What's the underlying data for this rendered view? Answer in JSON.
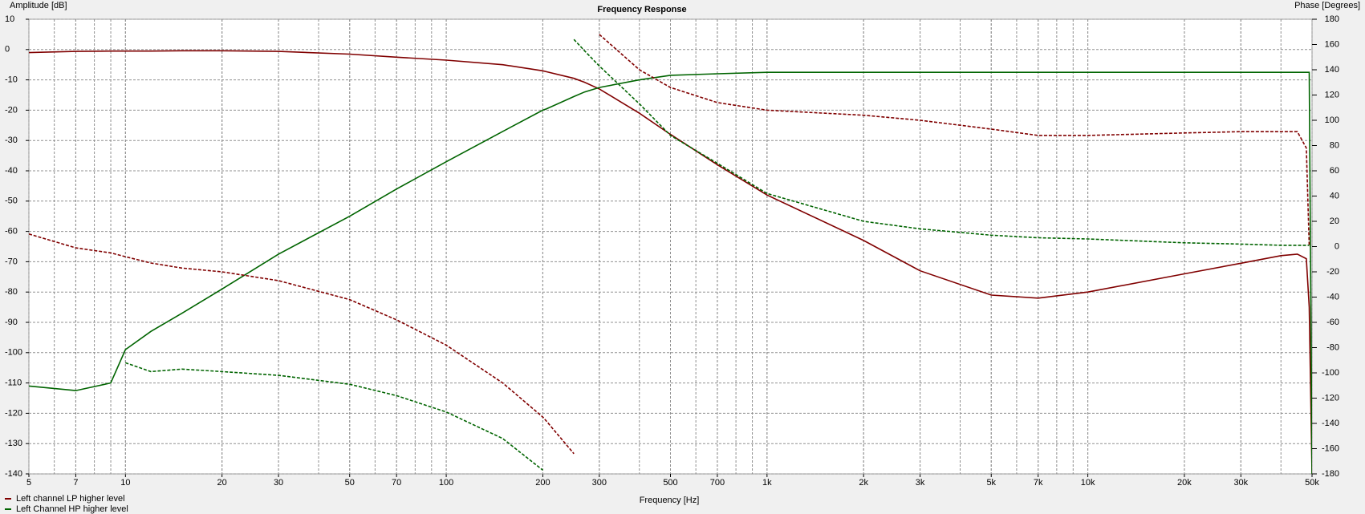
{
  "chart_data": {
    "type": "line",
    "title": "Frequency Response",
    "x_label": "Frequency [Hz]",
    "y_label": "Amplitude [dB]",
    "y2_label": "Phase [Degrees]",
    "x_scale": "log",
    "grid": true,
    "legend": "bottom-left",
    "xlim": [
      5,
      50000
    ],
    "xticks": [
      5,
      7,
      10,
      20,
      30,
      50,
      70,
      100,
      200,
      300,
      500,
      700,
      {
        "value": 1000,
        "label": "1k"
      },
      {
        "value": 2000,
        "label": "2k"
      },
      {
        "value": 3000,
        "label": "3k"
      },
      {
        "value": 5000,
        "label": "5k"
      },
      {
        "value": 7000,
        "label": "7k"
      },
      {
        "value": 10000,
        "label": "10k"
      },
      {
        "value": 20000,
        "label": "20k"
      },
      {
        "value": 30000,
        "label": "30k"
      },
      {
        "value": 50000,
        "label": "50k"
      }
    ],
    "ylim": [
      -140,
      10
    ],
    "yticks": [
      -140,
      -130,
      -120,
      -110,
      -100,
      -90,
      -80,
      -70,
      -60,
      -50,
      -40,
      -30,
      -20,
      -10,
      0,
      10
    ],
    "y2lim": [
      -180,
      180
    ],
    "y2ticks": [
      -180,
      -160,
      -140,
      -120,
      -100,
      -80,
      -60,
      -40,
      -20,
      0,
      20,
      40,
      60,
      80,
      100,
      120,
      140,
      160,
      180
    ],
    "x": [
      5,
      7,
      9,
      10,
      12,
      15,
      20,
      30,
      50,
      70,
      100,
      150,
      200,
      205,
      250,
      270,
      300,
      400,
      500,
      700,
      1000,
      2000,
      3000,
      5000,
      7000,
      10000,
      20000,
      30000,
      40000,
      45000,
      48000,
      49000,
      50000
    ],
    "series": [
      {
        "name": "Left channel LP higher level",
        "color": "#800000",
        "line_style": "solid",
        "values": [
          -1,
          -0.6,
          -0.5,
          -0.5,
          -0.5,
          -0.4,
          -0.4,
          -0.6,
          -1.5,
          -2.5,
          -3.5,
          -5,
          -7,
          -7.3,
          -9.5,
          -10.8,
          -13,
          -21,
          -28,
          -38,
          -48,
          -63,
          -73,
          -81,
          -82,
          -80,
          -74,
          -70.5,
          -68,
          -67.5,
          -69,
          -85,
          -140
        ]
      },
      {
        "name": "Left Channel HP higher level",
        "color": "#006400",
        "line_style": "solid",
        "values": [
          -111,
          -112.5,
          -110,
          -99,
          -93,
          -87,
          -79,
          -67.5,
          -55,
          -46,
          -37,
          -27,
          -20,
          -19.6,
          -15.5,
          -14,
          -12.5,
          -10,
          -8.5,
          -8,
          -7.5,
          -7.5,
          -7.5,
          -7.5,
          -7.5,
          -7.5,
          -7.5,
          -7.5,
          -7.5,
          -7.5,
          -7.5,
          -7.5,
          -140
        ]
      },
      {
        "color": "#800000",
        "line_style": "dashed",
        "axis": "y2",
        "values": [
          10,
          -1,
          -5,
          -8,
          -13,
          -17,
          -20,
          -27,
          -42,
          -58,
          -78,
          -108,
          -135,
          -138,
          -164,
          null,
          168,
          140,
          126,
          114,
          108,
          104,
          100,
          93,
          88,
          88,
          90,
          91,
          91,
          91,
          78,
          0,
          null
        ]
      },
      {
        "color": "#006400",
        "line_style": "dashed",
        "axis": "y2",
        "values": [
          null,
          null,
          null,
          -92,
          -99,
          -97,
          -99,
          -102,
          -109,
          -118,
          -131,
          -152,
          -177,
          null,
          164,
          155,
          143,
          113,
          88,
          66,
          42,
          20,
          14,
          9,
          7,
          6,
          3,
          2,
          1,
          1,
          1,
          1,
          null
        ]
      }
    ]
  }
}
